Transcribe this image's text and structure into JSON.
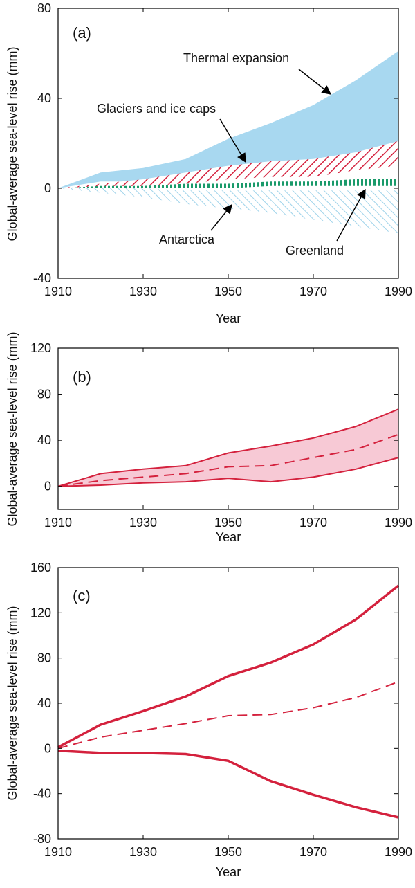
{
  "colors": {
    "thermal": "#a8d8f0",
    "glaciers": "#d4213d",
    "greenland": "#1a9a6a",
    "antarctica": "#9fd3ea",
    "band": "#f7c9d5",
    "line": "#d4213d"
  },
  "chart_data": [
    {
      "type": "area",
      "panel_label": "(a)",
      "xlabel": "Year",
      "ylabel": "Global-average sea-level rise (mm)",
      "xlim": [
        1910,
        1990
      ],
      "ylim": [
        -40,
        80
      ],
      "xticks": [
        1910,
        1930,
        1950,
        1970,
        1990
      ],
      "yticks": [
        -40,
        0,
        40,
        80
      ],
      "x": [
        1910,
        1920,
        1930,
        1940,
        1950,
        1960,
        1970,
        1980,
        1990
      ],
      "series": [
        {
          "name": "Thermal expansion",
          "lower": [
            0,
            3,
            3,
            4,
            5,
            5,
            7,
            14,
            20
          ],
          "upper": [
            0,
            7,
            9,
            13,
            22,
            29,
            37,
            48,
            61
          ]
        },
        {
          "name": "Glaciers and ice caps",
          "lower": [
            0,
            0,
            1,
            2,
            4,
            5,
            5,
            8,
            10
          ],
          "upper": [
            0,
            2,
            4,
            7,
            10,
            12,
            13,
            16,
            21
          ]
        },
        {
          "name": "Greenland",
          "lower": [
            0,
            0,
            0,
            0,
            0,
            1,
            1,
            1,
            1
          ],
          "upper": [
            0,
            1,
            1,
            2,
            2,
            3,
            3,
            4,
            4
          ]
        },
        {
          "name": "Antarctica",
          "lower": [
            0,
            -2,
            -4,
            -7,
            -9,
            -11,
            -14,
            -17,
            -20
          ],
          "upper": [
            0,
            0,
            0,
            -1,
            -1,
            -1,
            -1,
            -1,
            -1
          ]
        }
      ],
      "annotations": [
        "Thermal expansion",
        "Glaciers and ice caps",
        "Antarctica",
        "Greenland"
      ]
    },
    {
      "type": "area",
      "panel_label": "(b)",
      "xlabel": "Year",
      "ylabel": "Global-average sea-level rise (mm)",
      "xlim": [
        1910,
        1990
      ],
      "ylim": [
        -20,
        120
      ],
      "xticks": [
        1910,
        1930,
        1950,
        1970,
        1990
      ],
      "yticks": [
        0,
        40,
        80,
        120
      ],
      "x": [
        1910,
        1920,
        1930,
        1940,
        1950,
        1960,
        1970,
        1980,
        1990
      ],
      "upper": [
        0,
        11,
        15,
        18,
        29,
        35,
        42,
        52,
        67
      ],
      "mid": [
        0,
        5,
        8,
        11,
        17,
        18,
        25,
        32,
        45
      ],
      "lower": [
        0,
        1,
        3,
        4,
        7,
        4,
        8,
        15,
        25
      ]
    },
    {
      "type": "line",
      "panel_label": "(c)",
      "xlabel": "Year",
      "ylabel": "Global-average sea-level rise (mm)",
      "xlim": [
        1910,
        1990
      ],
      "ylim": [
        -80,
        160
      ],
      "xticks": [
        1910,
        1930,
        1950,
        1970,
        1990
      ],
      "yticks": [
        -80,
        -40,
        0,
        40,
        80,
        120,
        160
      ],
      "x": [
        1910,
        1920,
        1930,
        1940,
        1950,
        1960,
        1970,
        1980,
        1990
      ],
      "upper": [
        1,
        21,
        33,
        46,
        64,
        76,
        92,
        114,
        144
      ],
      "mid": [
        0,
        10,
        16,
        22,
        29,
        30,
        36,
        45,
        59
      ],
      "lower": [
        -2,
        -4,
        -4,
        -5,
        -11,
        -29,
        -41,
        -52,
        -61
      ]
    }
  ]
}
